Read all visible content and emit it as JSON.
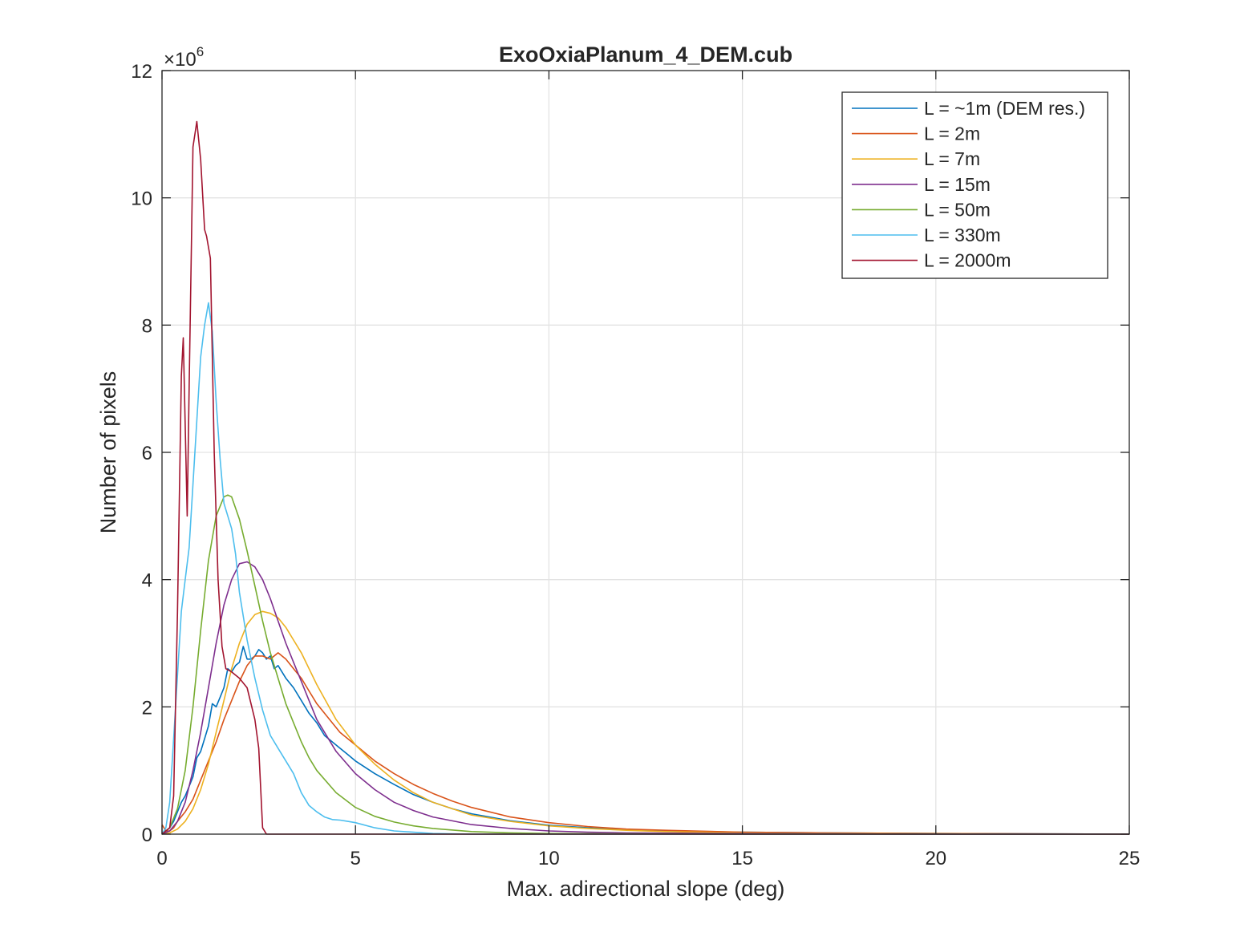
{
  "chart_data": {
    "type": "line",
    "title": "ExoOxiaPlanum_4_DEM.cub",
    "xlabel": "Max. adirectional slope (deg)",
    "ylabel": "Number of pixels",
    "y_exponent_label": "×10",
    "y_exponent_power": "6",
    "xlim": [
      0,
      25
    ],
    "ylim": [
      0,
      12
    ],
    "y_scale_multiplier": 1000000,
    "xticks": [
      0,
      5,
      10,
      15,
      20,
      25
    ],
    "xtick_labels": [
      "0",
      "5",
      "10",
      "15",
      "20",
      "25"
    ],
    "yticks": [
      0,
      2,
      4,
      6,
      8,
      10,
      12
    ],
    "ytick_labels": [
      "0",
      "2",
      "4",
      "6",
      "8",
      "10",
      "12"
    ],
    "grid": true,
    "legend_position": "top-right",
    "series": [
      {
        "name": "L = ~1m (DEM res.)",
        "color": "#0072BD",
        "x": [
          0,
          0.1,
          0.2,
          0.3,
          0.4,
          0.5,
          0.6,
          0.7,
          0.8,
          0.9,
          1.0,
          1.1,
          1.2,
          1.3,
          1.4,
          1.5,
          1.6,
          1.7,
          1.8,
          1.9,
          2.0,
          2.1,
          2.2,
          2.3,
          2.4,
          2.5,
          2.6,
          2.7,
          2.8,
          2.9,
          3.0,
          3.2,
          3.4,
          3.6,
          3.8,
          4.0,
          4.2,
          4.4,
          4.6,
          4.8,
          5.0,
          5.5,
          6.0,
          6.5,
          7.0,
          7.5,
          8.0,
          9.0,
          10.0,
          11.0,
          12.0,
          13.0,
          15.0,
          17.0,
          20.0,
          25.0
        ],
        "y": [
          0.0,
          0.05,
          0.1,
          0.2,
          0.35,
          0.5,
          0.6,
          0.75,
          0.9,
          1.2,
          1.3,
          1.5,
          1.7,
          2.05,
          2.0,
          2.15,
          2.3,
          2.6,
          2.55,
          2.65,
          2.7,
          2.95,
          2.75,
          2.75,
          2.8,
          2.9,
          2.85,
          2.75,
          2.8,
          2.6,
          2.65,
          2.45,
          2.3,
          2.1,
          1.9,
          1.75,
          1.55,
          1.45,
          1.35,
          1.25,
          1.15,
          0.95,
          0.78,
          0.62,
          0.5,
          0.4,
          0.32,
          0.21,
          0.14,
          0.1,
          0.07,
          0.05,
          0.03,
          0.02,
          0.01,
          0.0
        ]
      },
      {
        "name": "L = 2m",
        "color": "#D95319",
        "x": [
          0,
          0.1,
          0.2,
          0.3,
          0.4,
          0.6,
          0.8,
          1.0,
          1.2,
          1.4,
          1.6,
          1.8,
          2.0,
          2.2,
          2.4,
          2.6,
          2.8,
          3.0,
          3.2,
          3.4,
          3.6,
          3.8,
          4.0,
          4.2,
          4.4,
          4.6,
          4.8,
          5.0,
          5.5,
          6.0,
          6.5,
          7.0,
          7.5,
          8.0,
          9.0,
          10.0,
          11.0,
          12.0,
          13.0,
          15.0,
          17.0,
          20.0,
          25.0
        ],
        "y": [
          0.15,
          0.05,
          0.05,
          0.1,
          0.2,
          0.35,
          0.55,
          0.85,
          1.15,
          1.45,
          1.8,
          2.1,
          2.4,
          2.65,
          2.8,
          2.8,
          2.75,
          2.85,
          2.75,
          2.6,
          2.45,
          2.25,
          2.05,
          1.9,
          1.75,
          1.6,
          1.5,
          1.4,
          1.15,
          0.95,
          0.78,
          0.64,
          0.52,
          0.42,
          0.27,
          0.18,
          0.12,
          0.08,
          0.06,
          0.03,
          0.02,
          0.01,
          0.0
        ]
      },
      {
        "name": "L = 7m",
        "color": "#EDB120",
        "x": [
          0,
          0.2,
          0.4,
          0.6,
          0.8,
          1.0,
          1.2,
          1.4,
          1.6,
          1.8,
          2.0,
          2.2,
          2.4,
          2.6,
          2.8,
          3.0,
          3.2,
          3.4,
          3.6,
          3.8,
          4.0,
          4.5,
          5.0,
          5.5,
          6.0,
          6.5,
          7.0,
          8.0,
          9.0,
          10.0,
          11.0,
          12.0,
          13.0,
          15.0,
          17.0,
          20.0,
          25.0
        ],
        "y": [
          0.0,
          0.02,
          0.08,
          0.2,
          0.4,
          0.7,
          1.1,
          1.6,
          2.1,
          2.6,
          3.0,
          3.3,
          3.45,
          3.5,
          3.47,
          3.4,
          3.25,
          3.05,
          2.85,
          2.6,
          2.35,
          1.8,
          1.4,
          1.1,
          0.85,
          0.65,
          0.5,
          0.3,
          0.2,
          0.13,
          0.09,
          0.06,
          0.04,
          0.02,
          0.01,
          0.005,
          0.0
        ]
      },
      {
        "name": "L = 15m",
        "color": "#7E2F8E",
        "x": [
          0,
          0.2,
          0.4,
          0.6,
          0.8,
          1.0,
          1.2,
          1.4,
          1.6,
          1.8,
          2.0,
          2.2,
          2.4,
          2.6,
          2.8,
          3.0,
          3.2,
          3.4,
          3.6,
          3.8,
          4.0,
          4.5,
          5.0,
          5.5,
          6.0,
          6.5,
          7.0,
          8.0,
          9.0,
          10.0,
          11.0,
          12.0,
          15.0,
          20.0,
          25.0
        ],
        "y": [
          0.0,
          0.05,
          0.2,
          0.5,
          1.0,
          1.6,
          2.3,
          3.0,
          3.6,
          4.0,
          4.25,
          4.28,
          4.2,
          4.0,
          3.7,
          3.35,
          3.0,
          2.7,
          2.4,
          2.1,
          1.8,
          1.3,
          0.95,
          0.7,
          0.5,
          0.37,
          0.27,
          0.15,
          0.09,
          0.05,
          0.03,
          0.02,
          0.01,
          0.0,
          0.0
        ]
      },
      {
        "name": "L = 50m",
        "color": "#77AC30",
        "x": [
          0,
          0.2,
          0.4,
          0.6,
          0.8,
          1.0,
          1.2,
          1.4,
          1.6,
          1.7,
          1.8,
          2.0,
          2.2,
          2.4,
          2.6,
          2.8,
          3.0,
          3.2,
          3.4,
          3.6,
          3.8,
          4.0,
          4.5,
          5.0,
          5.5,
          6.0,
          6.5,
          7.0,
          8.0,
          9.0,
          10.0,
          12.0,
          15.0,
          20.0,
          25.0
        ],
        "y": [
          0.0,
          0.1,
          0.4,
          1.0,
          2.0,
          3.2,
          4.3,
          5.0,
          5.3,
          5.33,
          5.3,
          4.95,
          4.45,
          3.9,
          3.35,
          2.85,
          2.45,
          2.05,
          1.75,
          1.45,
          1.2,
          1.0,
          0.65,
          0.42,
          0.28,
          0.19,
          0.13,
          0.09,
          0.04,
          0.02,
          0.01,
          0.005,
          0.0,
          0.0,
          0.0
        ]
      },
      {
        "name": "L = 330m",
        "color": "#4DBEEE",
        "x": [
          0,
          0.1,
          0.2,
          0.3,
          0.4,
          0.5,
          0.6,
          0.7,
          0.8,
          0.9,
          1.0,
          1.1,
          1.2,
          1.3,
          1.4,
          1.5,
          1.6,
          1.7,
          1.8,
          1.9,
          2.0,
          2.2,
          2.4,
          2.6,
          2.8,
          3.0,
          3.2,
          3.4,
          3.6,
          3.8,
          4.0,
          4.2,
          4.4,
          4.6,
          4.8,
          5.0,
          5.5,
          6.0,
          7.0,
          8.0,
          10.0,
          25.0
        ],
        "y": [
          0.0,
          0.1,
          0.5,
          1.5,
          2.5,
          3.5,
          4.0,
          4.5,
          5.5,
          6.5,
          7.5,
          8.0,
          8.35,
          7.9,
          6.8,
          5.9,
          5.2,
          5.0,
          4.8,
          4.4,
          3.8,
          3.05,
          2.45,
          1.95,
          1.55,
          1.35,
          1.15,
          0.95,
          0.65,
          0.45,
          0.35,
          0.27,
          0.23,
          0.22,
          0.2,
          0.18,
          0.1,
          0.05,
          0.01,
          0.0,
          0.0,
          0.0
        ]
      },
      {
        "name": "L = 2000m",
        "color": "#A2142F",
        "x": [
          0,
          0.1,
          0.2,
          0.3,
          0.4,
          0.5,
          0.55,
          0.65,
          0.7,
          0.8,
          0.9,
          0.95,
          1.0,
          1.1,
          1.15,
          1.25,
          1.35,
          1.45,
          1.55,
          1.65,
          1.8,
          2.0,
          2.2,
          2.4,
          2.5,
          2.6,
          2.7,
          3.0,
          25.0
        ],
        "y": [
          0.0,
          0.05,
          0.1,
          0.6,
          3.5,
          7.2,
          7.8,
          5.0,
          7.0,
          10.8,
          11.2,
          10.9,
          10.6,
          9.5,
          9.4,
          9.05,
          6.0,
          4.0,
          2.95,
          2.6,
          2.55,
          2.45,
          2.3,
          1.8,
          1.35,
          0.1,
          0.0,
          0.0,
          0.0
        ]
      }
    ]
  }
}
